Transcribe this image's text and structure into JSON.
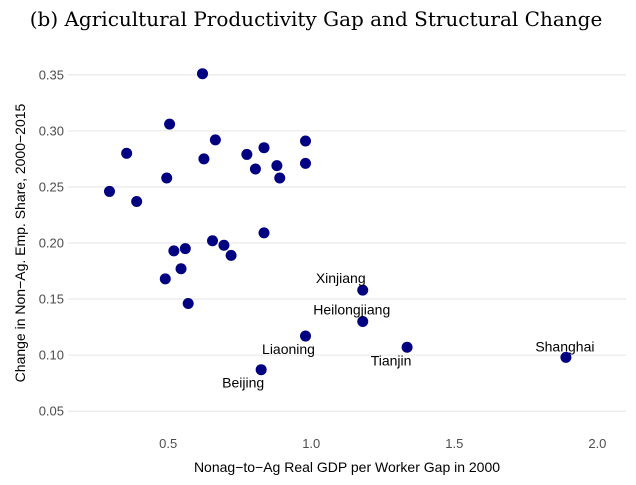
{
  "chart_data": {
    "type": "scatter",
    "title": "(b) Agricultural Productivity Gap and Structural Change",
    "xlabel": "Nonag−to−Ag Real GDP per Worker Gap in 2000",
    "ylabel": "Change in Non−Ag. Emp. Share, 2000−2015",
    "xlim": [
      0.15,
      2.1
    ],
    "ylim": [
      0.035,
      0.365
    ],
    "x_ticks": [
      {
        "value": 0.5,
        "label": "0.5"
      },
      {
        "value": 1.0,
        "label": "1.0"
      },
      {
        "value": 1.5,
        "label": "1.5"
      },
      {
        "value": 2.0,
        "label": "2.0"
      }
    ],
    "y_ticks": [
      {
        "value": 0.05,
        "label": "0.05"
      },
      {
        "value": 0.1,
        "label": "0.10"
      },
      {
        "value": 0.15,
        "label": "0.15"
      },
      {
        "value": 0.2,
        "label": "0.20"
      },
      {
        "value": 0.25,
        "label": "0.25"
      },
      {
        "value": 0.3,
        "label": "0.30"
      },
      {
        "value": 0.35,
        "label": "0.35"
      }
    ],
    "grid": true,
    "point_color": "#000080",
    "points": [
      {
        "x": 0.62,
        "y": 0.351
      },
      {
        "x": 0.505,
        "y": 0.306
      },
      {
        "x": 0.665,
        "y": 0.292
      },
      {
        "x": 0.98,
        "y": 0.291
      },
      {
        "x": 0.835,
        "y": 0.285
      },
      {
        "x": 0.355,
        "y": 0.28
      },
      {
        "x": 0.775,
        "y": 0.279
      },
      {
        "x": 0.625,
        "y": 0.275
      },
      {
        "x": 0.98,
        "y": 0.271
      },
      {
        "x": 0.88,
        "y": 0.269
      },
      {
        "x": 0.805,
        "y": 0.266
      },
      {
        "x": 0.495,
        "y": 0.258
      },
      {
        "x": 0.89,
        "y": 0.258
      },
      {
        "x": 0.295,
        "y": 0.246
      },
      {
        "x": 0.39,
        "y": 0.237
      },
      {
        "x": 0.835,
        "y": 0.209
      },
      {
        "x": 0.655,
        "y": 0.202
      },
      {
        "x": 0.695,
        "y": 0.198
      },
      {
        "x": 0.56,
        "y": 0.195
      },
      {
        "x": 0.52,
        "y": 0.193
      },
      {
        "x": 0.72,
        "y": 0.189
      },
      {
        "x": 0.545,
        "y": 0.177
      },
      {
        "x": 0.49,
        "y": 0.168
      },
      {
        "x": 0.57,
        "y": 0.146
      },
      {
        "x": 1.18,
        "y": 0.158,
        "label": "Xinjiang"
      },
      {
        "x": 1.18,
        "y": 0.13,
        "label": "Heilongjiang"
      },
      {
        "x": 0.98,
        "y": 0.117,
        "label": "Liaoning"
      },
      {
        "x": 1.335,
        "y": 0.107,
        "label": "Tianjin"
      },
      {
        "x": 1.89,
        "y": 0.098,
        "label": "Shanghai"
      },
      {
        "x": 0.825,
        "y": 0.087,
        "label": "Beijing"
      }
    ]
  }
}
